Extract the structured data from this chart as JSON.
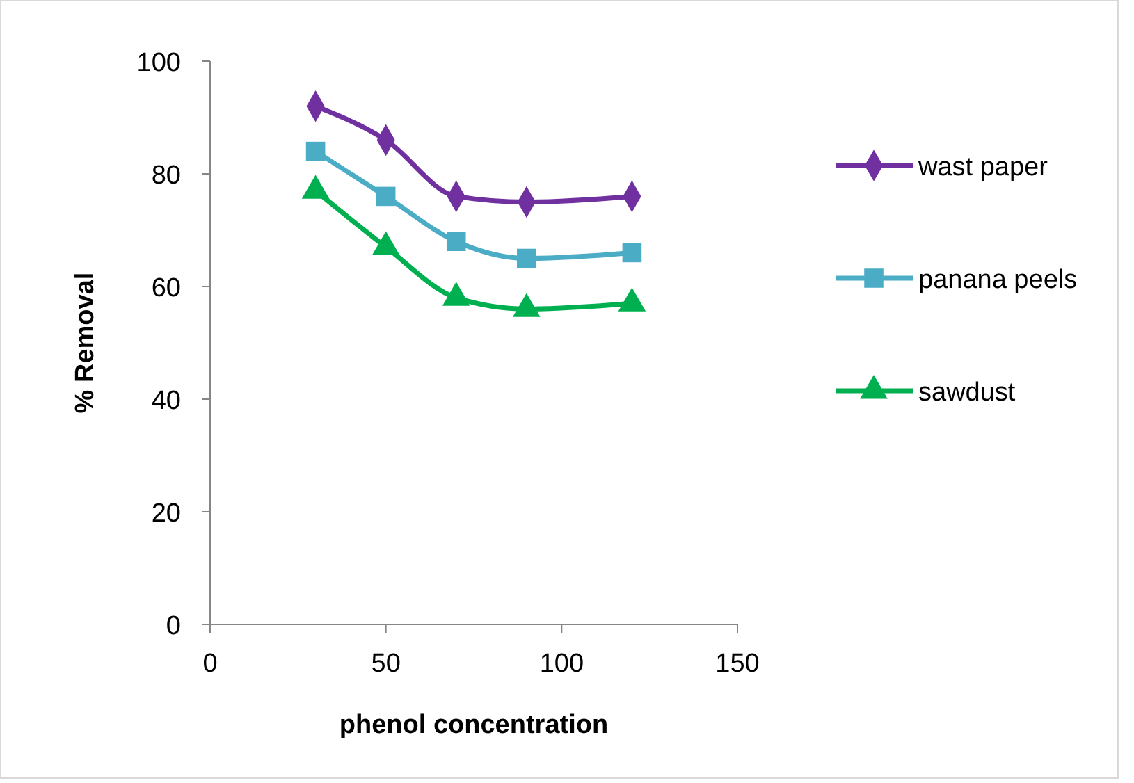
{
  "chart_data": {
    "type": "line",
    "xlabel": "phenol concentration",
    "ylabel": "% Removal",
    "x": [
      30,
      50,
      70,
      90,
      120
    ],
    "series": [
      {
        "name": "wast paper",
        "color": "#7030a0",
        "marker": "diamond",
        "values": [
          92,
          86,
          76,
          75,
          76
        ]
      },
      {
        "name": "panana peels",
        "color": "#4bacc6",
        "marker": "square",
        "values": [
          84,
          76,
          68,
          65,
          66
        ]
      },
      {
        "name": "sawdust",
        "color": "#00b050",
        "marker": "triangle",
        "values": [
          77,
          67,
          58,
          56,
          57
        ]
      }
    ],
    "xlim": [
      0,
      150
    ],
    "xticks": [
      0,
      50,
      100,
      150
    ],
    "ylim": [
      0,
      100
    ],
    "yticks": [
      0,
      20,
      40,
      60,
      80,
      100
    ],
    "grid": false,
    "legend": "right",
    "line_style": "solid"
  }
}
